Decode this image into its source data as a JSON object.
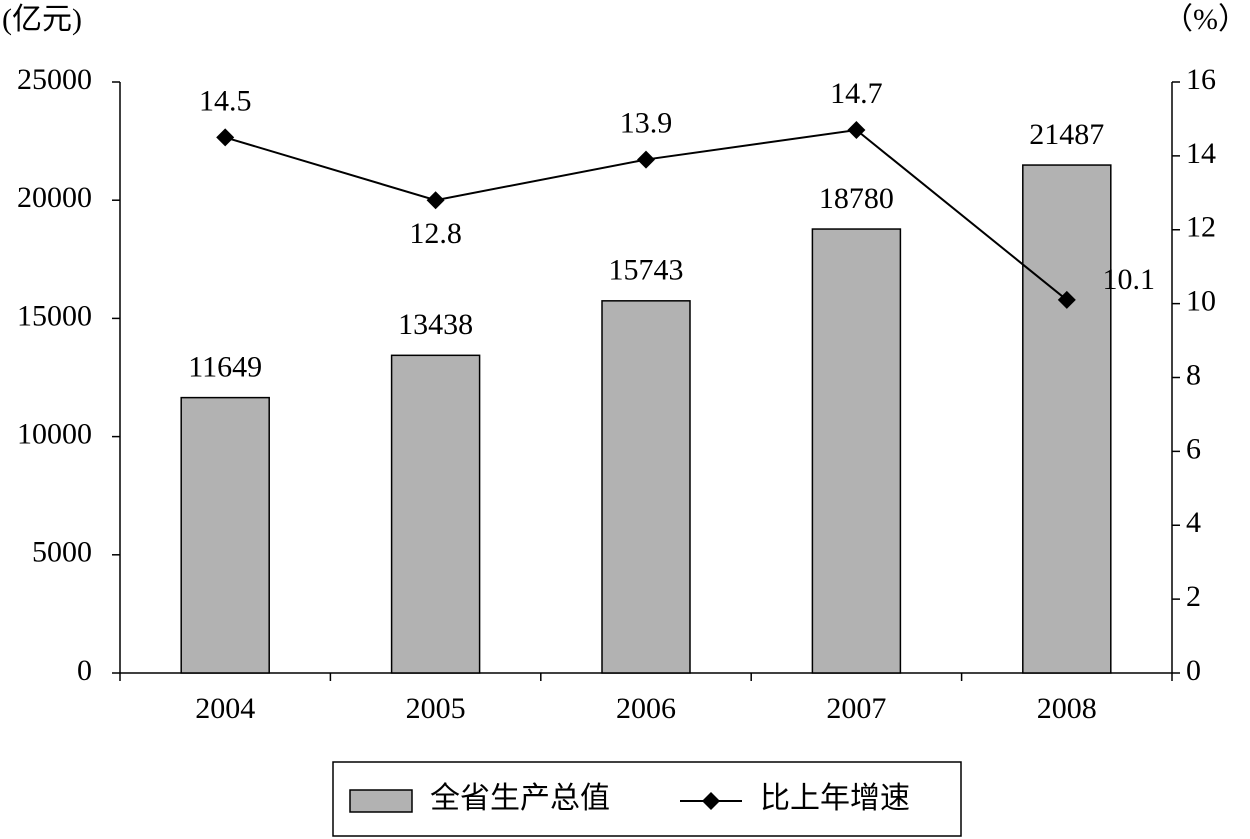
{
  "chart_data": {
    "type": "bar",
    "y_label": "(亿元)",
    "y2_label": "（%）",
    "categories": [
      "2004",
      "2005",
      "2006",
      "2007",
      "2008"
    ],
    "series": [
      {
        "name": "全省生产总值",
        "color": "#b2b2b2",
        "values": [
          11649,
          13438,
          15743,
          18780,
          21487
        ]
      },
      {
        "name": "比上年增速",
        "color": "#000000",
        "type": "line",
        "axis": "y2",
        "values": [
          14.5,
          12.8,
          13.9,
          14.7,
          10.1
        ]
      }
    ],
    "ylim": [
      0,
      25000
    ],
    "yticks": [
      0,
      5000,
      10000,
      15000,
      20000,
      25000
    ],
    "y2lim": [
      0,
      16
    ],
    "y2ticks": [
      0,
      2,
      4,
      6,
      8,
      10,
      12,
      14,
      16
    ],
    "legend": "bottom"
  }
}
